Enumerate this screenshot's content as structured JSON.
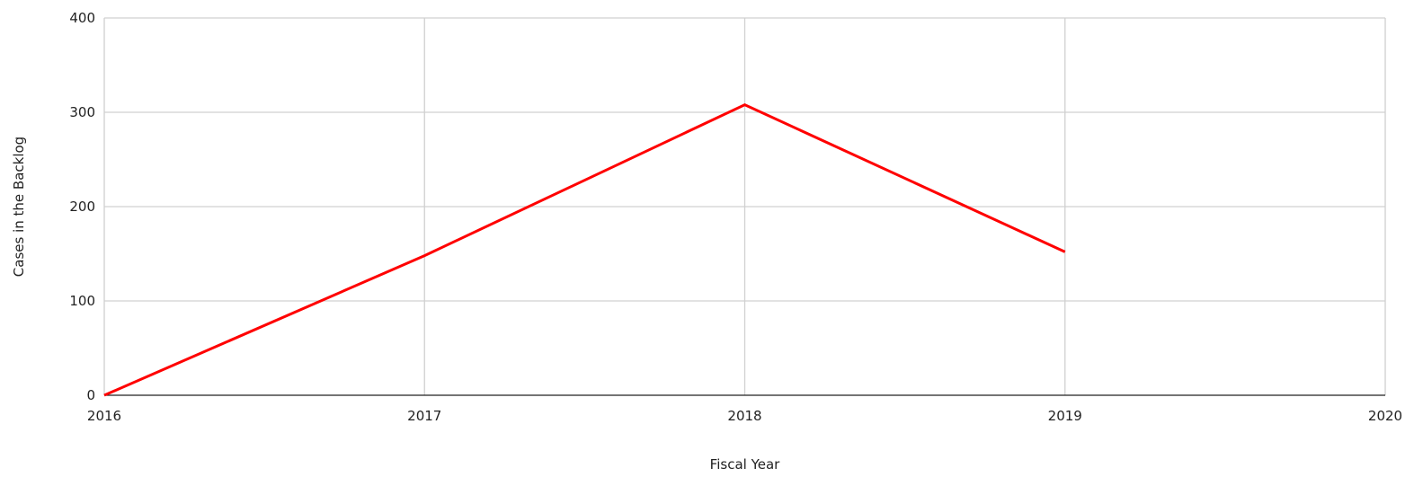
{
  "chart_data": {
    "type": "line",
    "xlabel": "Fiscal Year",
    "ylabel": "Cases in the Backlog",
    "xlim": [
      2016,
      2020
    ],
    "ylim": [
      0,
      400
    ],
    "x_ticks": [
      "2016",
      "2017",
      "2018",
      "2019",
      "2020"
    ],
    "y_ticks": [
      "0",
      "100",
      "200",
      "300",
      "400"
    ],
    "grid": true,
    "legend": "none",
    "series": [
      {
        "color": "#ff0000",
        "x": [
          2016,
          2017,
          2018,
          2019
        ],
        "values": [
          0,
          148,
          308,
          152
        ]
      }
    ]
  }
}
